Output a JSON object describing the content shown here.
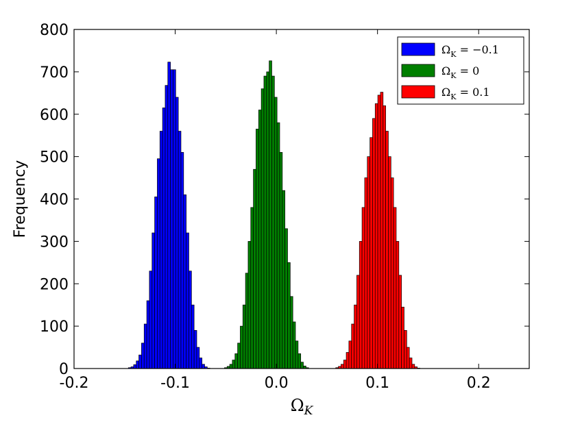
{
  "chart_data": {
    "type": "histogram",
    "title": "",
    "xlabel": "Ω_K",
    "ylabel": "Frequency",
    "xlim": [
      -0.2,
      0.25
    ],
    "ylim": [
      0,
      800
    ],
    "xticks": [
      -0.2,
      -0.1,
      0.0,
      0.1,
      0.2
    ],
    "xtick_labels": [
      "-0.2",
      "-0.1",
      "0.0",
      "0.1",
      "0.2"
    ],
    "yticks": [
      0,
      100,
      200,
      300,
      400,
      500,
      600,
      700,
      800
    ],
    "ytick_labels": [
      "0",
      "100",
      "200",
      "300",
      "400",
      "500",
      "600",
      "700",
      "800"
    ],
    "grid": false,
    "legend_position": "top-right",
    "bin_width": 0.0026,
    "series": [
      {
        "name": "Ω_K = −0.1",
        "color": "#0000ff",
        "center": -0.103,
        "std": 0.0138,
        "peak": 723,
        "bins": [
          {
            "x": -0.155,
            "y": 0
          },
          {
            "x": -0.145,
            "y": 2
          },
          {
            "x": -0.1424,
            "y": 4
          },
          {
            "x": -0.1398,
            "y": 9
          },
          {
            "x": -0.1372,
            "y": 18
          },
          {
            "x": -0.1346,
            "y": 32
          },
          {
            "x": -0.132,
            "y": 60
          },
          {
            "x": -0.1294,
            "y": 105
          },
          {
            "x": -0.1268,
            "y": 160
          },
          {
            "x": -0.1242,
            "y": 230
          },
          {
            "x": -0.1216,
            "y": 320
          },
          {
            "x": -0.119,
            "y": 405
          },
          {
            "x": -0.1164,
            "y": 495
          },
          {
            "x": -0.1138,
            "y": 560
          },
          {
            "x": -0.1112,
            "y": 615
          },
          {
            "x": -0.1086,
            "y": 668
          },
          {
            "x": -0.106,
            "y": 723
          },
          {
            "x": -0.1034,
            "y": 705
          },
          {
            "x": -0.1008,
            "y": 705
          },
          {
            "x": -0.0982,
            "y": 640
          },
          {
            "x": -0.0956,
            "y": 560
          },
          {
            "x": -0.093,
            "y": 510
          },
          {
            "x": -0.0904,
            "y": 410
          },
          {
            "x": -0.0878,
            "y": 320
          },
          {
            "x": -0.0852,
            "y": 230
          },
          {
            "x": -0.0826,
            "y": 150
          },
          {
            "x": -0.08,
            "y": 90
          },
          {
            "x": -0.0774,
            "y": 50
          },
          {
            "x": -0.0748,
            "y": 25
          },
          {
            "x": -0.0722,
            "y": 10
          },
          {
            "x": -0.0696,
            "y": 4
          },
          {
            "x": -0.067,
            "y": 1
          }
        ]
      },
      {
        "name": "Ω_K = 0",
        "color": "#007f00",
        "center": -0.001,
        "std": 0.0138,
        "peak": 726,
        "bins": [
          {
            "x": -0.05,
            "y": 2
          },
          {
            "x": -0.0474,
            "y": 5
          },
          {
            "x": -0.0448,
            "y": 10
          },
          {
            "x": -0.0422,
            "y": 20
          },
          {
            "x": -0.0396,
            "y": 35
          },
          {
            "x": -0.037,
            "y": 60
          },
          {
            "x": -0.0344,
            "y": 100
          },
          {
            "x": -0.0318,
            "y": 150
          },
          {
            "x": -0.0292,
            "y": 225
          },
          {
            "x": -0.0266,
            "y": 300
          },
          {
            "x": -0.024,
            "y": 380
          },
          {
            "x": -0.0214,
            "y": 470
          },
          {
            "x": -0.0188,
            "y": 565
          },
          {
            "x": -0.0162,
            "y": 610
          },
          {
            "x": -0.0136,
            "y": 660
          },
          {
            "x": -0.011,
            "y": 690
          },
          {
            "x": -0.0084,
            "y": 700
          },
          {
            "x": -0.0058,
            "y": 726
          },
          {
            "x": -0.0032,
            "y": 690
          },
          {
            "x": -0.0006,
            "y": 640
          },
          {
            "x": 0.002,
            "y": 580
          },
          {
            "x": 0.0046,
            "y": 510
          },
          {
            "x": 0.0072,
            "y": 420
          },
          {
            "x": 0.0098,
            "y": 330
          },
          {
            "x": 0.0124,
            "y": 250
          },
          {
            "x": 0.015,
            "y": 170
          },
          {
            "x": 0.0176,
            "y": 110
          },
          {
            "x": 0.0202,
            "y": 65
          },
          {
            "x": 0.0228,
            "y": 35
          },
          {
            "x": 0.0254,
            "y": 15
          },
          {
            "x": 0.028,
            "y": 6
          },
          {
            "x": 0.0306,
            "y": 2
          }
        ]
      },
      {
        "name": "Ω_K = 0.1",
        "color": "#ff0000",
        "center": 0.103,
        "std": 0.0138,
        "peak": 652,
        "bins": [
          {
            "x": 0.06,
            "y": 2
          },
          {
            "x": 0.0626,
            "y": 5
          },
          {
            "x": 0.0652,
            "y": 10
          },
          {
            "x": 0.0678,
            "y": 20
          },
          {
            "x": 0.0704,
            "y": 38
          },
          {
            "x": 0.073,
            "y": 65
          },
          {
            "x": 0.0756,
            "y": 105
          },
          {
            "x": 0.0782,
            "y": 150
          },
          {
            "x": 0.0808,
            "y": 220
          },
          {
            "x": 0.0834,
            "y": 300
          },
          {
            "x": 0.086,
            "y": 380
          },
          {
            "x": 0.0886,
            "y": 450
          },
          {
            "x": 0.0912,
            "y": 500
          },
          {
            "x": 0.0938,
            "y": 545
          },
          {
            "x": 0.0964,
            "y": 590
          },
          {
            "x": 0.099,
            "y": 625
          },
          {
            "x": 0.1016,
            "y": 645
          },
          {
            "x": 0.1042,
            "y": 652
          },
          {
            "x": 0.1068,
            "y": 620
          },
          {
            "x": 0.1094,
            "y": 560
          },
          {
            "x": 0.112,
            "y": 500
          },
          {
            "x": 0.1146,
            "y": 450
          },
          {
            "x": 0.1172,
            "y": 380
          },
          {
            "x": 0.1198,
            "y": 300
          },
          {
            "x": 0.1224,
            "y": 220
          },
          {
            "x": 0.125,
            "y": 145
          },
          {
            "x": 0.1276,
            "y": 90
          },
          {
            "x": 0.1302,
            "y": 50
          },
          {
            "x": 0.1328,
            "y": 25
          },
          {
            "x": 0.1354,
            "y": 10
          },
          {
            "x": 0.138,
            "y": 4
          },
          {
            "x": 0.1406,
            "y": 1
          }
        ]
      }
    ]
  }
}
